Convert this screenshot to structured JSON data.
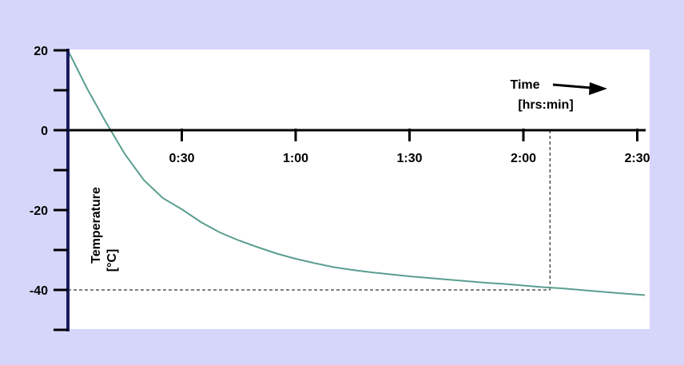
{
  "chart_data": {
    "type": "line",
    "title": "",
    "xlabel": [
      "Time",
      "[hrs:min]"
    ],
    "ylabel": [
      "Temperature",
      "[°C]"
    ],
    "xlim": [
      0,
      150
    ],
    "ylim": [
      -50,
      20
    ],
    "x_ticks": [
      {
        "value": 30,
        "label": "0:30"
      },
      {
        "value": 60,
        "label": "1:00"
      },
      {
        "value": 90,
        "label": "1:30"
      },
      {
        "value": 120,
        "label": "2:00"
      },
      {
        "value": 150,
        "label": "2:30"
      }
    ],
    "y_ticks": [
      {
        "value": 20,
        "label": "20"
      },
      {
        "value": 0,
        "label": "0"
      },
      {
        "value": -20,
        "label": "-20"
      },
      {
        "value": -40,
        "label": "-40"
      }
    ],
    "y_minor_ticks": [
      10,
      -10,
      -30,
      -50
    ],
    "x_minor_ticks": [],
    "series": [
      {
        "color": "#5a9e90",
        "x": [
          0,
          5,
          10,
          15,
          20,
          25,
          30,
          35,
          40,
          45,
          50,
          55,
          60,
          65,
          70,
          75,
          80,
          85,
          90,
          95,
          100,
          105,
          110,
          115,
          120,
          125,
          130,
          135,
          140,
          145,
          152
        ],
        "y": [
          20,
          10.5,
          2,
          -6,
          -12.5,
          -17,
          -19.8,
          -23,
          -25.6,
          -27.6,
          -29.3,
          -30.9,
          -32.2,
          -33.3,
          -34.3,
          -35,
          -35.6,
          -36.1,
          -36.6,
          -37,
          -37.4,
          -37.8,
          -38.2,
          -38.5,
          -38.9,
          -39.3,
          -39.6,
          -40,
          -40.4,
          -40.8,
          -41.3
        ]
      }
    ],
    "reference_lines": [
      {
        "type": "horizontal",
        "y": -40,
        "x_from": 0,
        "x_to": 127,
        "style": "dashed"
      },
      {
        "type": "vertical",
        "x": 127,
        "y_from": -40,
        "y_to": 0,
        "style": "dashed"
      }
    ],
    "arrow": {
      "direction": "right"
    },
    "plot_background": "#ffffff",
    "page_background": "#d6d6fa",
    "axis_color": "#000000",
    "y_axis_color": "#1a1a5e",
    "grid": false
  }
}
